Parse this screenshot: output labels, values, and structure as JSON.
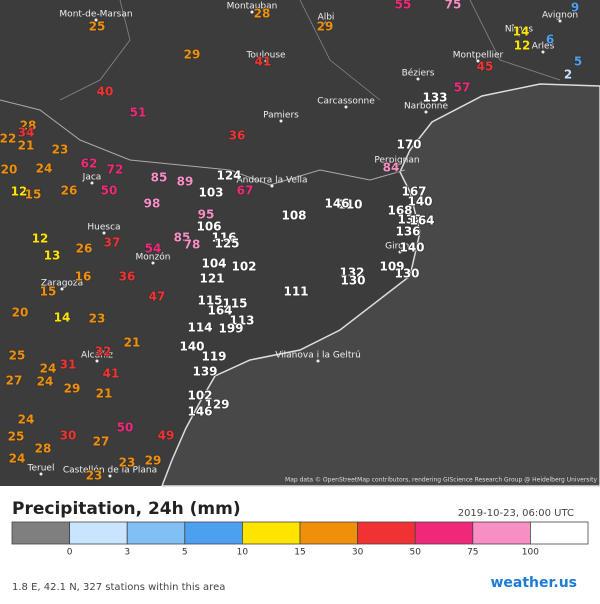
{
  "title": "Precipitation, 24h (mm)",
  "timestamp": "2019-10-23, 06:00 UTC",
  "footer": "1.8 E, 42.1 N, 327 stations within this area",
  "brand": "weather.us",
  "attribution": "Map data © OpenStreetMap contributors, rendering GIScience Research Group @ Heidelberg University",
  "legend": {
    "ticks": [
      0,
      3,
      5,
      10,
      15,
      30,
      50,
      75,
      100
    ],
    "colors": [
      "#7f7f7f",
      "#c8e4ff",
      "#80c0f5",
      "#4ba0f0",
      "#ffe400",
      "#f0900a",
      "#f03232",
      "#f0287a",
      "#f78ec4",
      "#ffffff"
    ]
  },
  "cities": [
    {
      "name": "Mont-de-Marsan"
    },
    {
      "name": "Montauban"
    },
    {
      "name": "Albi"
    },
    {
      "name": "Avignon"
    },
    {
      "name": "Nîmes"
    },
    {
      "name": "Arles"
    },
    {
      "name": "Toulouse"
    },
    {
      "name": "Montpellier"
    },
    {
      "name": "Béziers"
    },
    {
      "name": "Carcassonne"
    },
    {
      "name": "Narbonne"
    },
    {
      "name": "Pamiers"
    },
    {
      "name": "Perpignan"
    },
    {
      "name": "Andorra la Vella"
    },
    {
      "name": "Jaca"
    },
    {
      "name": "Huesca"
    },
    {
      "name": "Girona"
    },
    {
      "name": "Monzón"
    },
    {
      "name": "Zaragoza"
    },
    {
      "name": "Alcañiz"
    },
    {
      "name": "Vilanova i la Geltrú"
    },
    {
      "name": "Teruel"
    },
    {
      "name": "Castellón de la Plana"
    }
  ],
  "stations": [
    25,
    28,
    29,
    55,
    75,
    9,
    14,
    12,
    6,
    2,
    5,
    29,
    41,
    40,
    51,
    45,
    57,
    133,
    36,
    28,
    34,
    22,
    21,
    23,
    20,
    24,
    12,
    15,
    26,
    170,
    84,
    167,
    140,
    168,
    132,
    164,
    136,
    140,
    109,
    130,
    62,
    72,
    85,
    89,
    50,
    103,
    124,
    67,
    98,
    95,
    108,
    110,
    146,
    106,
    116,
    85,
    78,
    125,
    104,
    102,
    121,
    132,
    130,
    111,
    115,
    115,
    164,
    113,
    199,
    114,
    140,
    119,
    139,
    102,
    129,
    146,
    12,
    13,
    26,
    37,
    54,
    16,
    36,
    47,
    15,
    20,
    14,
    23,
    21,
    32,
    25,
    27,
    24,
    31,
    24,
    29,
    41,
    21,
    50,
    49,
    24,
    25,
    30,
    27,
    24,
    28,
    29,
    23,
    23
  ]
}
